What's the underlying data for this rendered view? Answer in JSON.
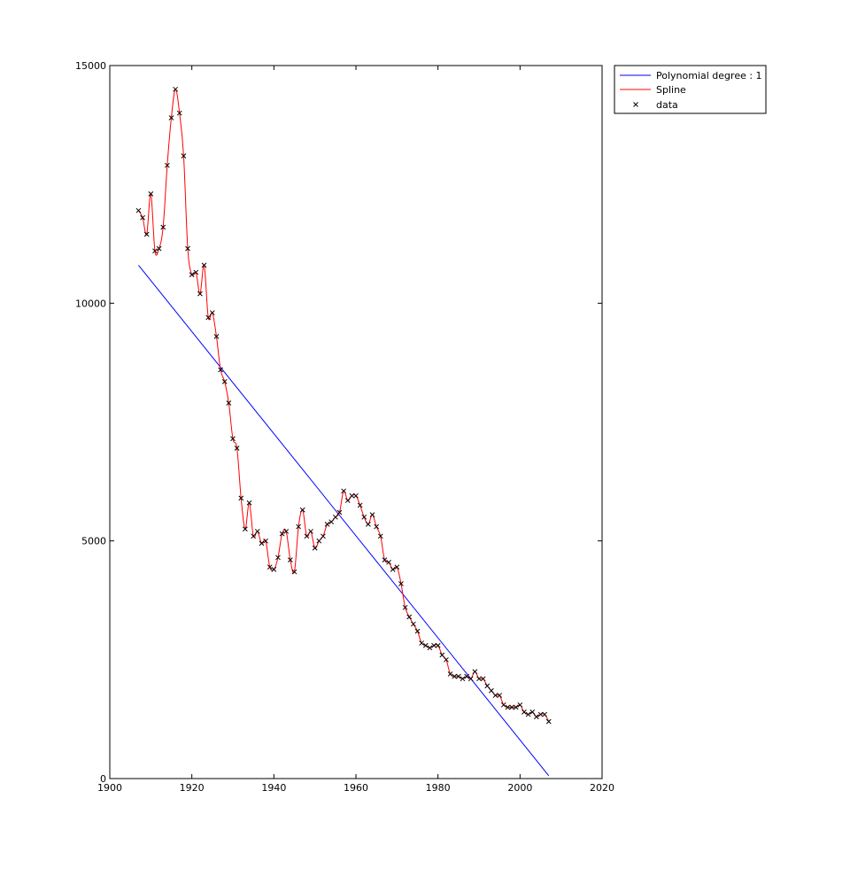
{
  "chart_data": {
    "type": "line",
    "xlim": [
      1900,
      2020
    ],
    "ylim": [
      0,
      15000
    ],
    "x_ticks": [
      1900,
      1920,
      1940,
      1960,
      1980,
      2000,
      2020
    ],
    "y_ticks": [
      0,
      5000,
      10000,
      15000
    ],
    "x_tick_labels": [
      "1900",
      "1920",
      "1940",
      "1960",
      "1980",
      "2000",
      "2020"
    ],
    "y_tick_labels": [
      "0",
      "5000",
      "10000",
      "15000"
    ],
    "grid": false,
    "legend_position": "outside-top-right",
    "legend": [
      "Polynomial degree : 1",
      "Spline",
      "data"
    ],
    "colors": {
      "fit": "#0000ff",
      "spline": "#ff0000",
      "data": "#000000"
    },
    "fit_line": {
      "x": [
        1907,
        2007
      ],
      "y": [
        10800,
        60
      ]
    },
    "data": {
      "x": [
        1907,
        1908,
        1909,
        1910,
        1911,
        1912,
        1913,
        1914,
        1915,
        1916,
        1917,
        1918,
        1919,
        1920,
        1921,
        1922,
        1923,
        1924,
        1925,
        1926,
        1927,
        1928,
        1929,
        1930,
        1931,
        1932,
        1933,
        1934,
        1935,
        1936,
        1937,
        1938,
        1939,
        1940,
        1941,
        1942,
        1943,
        1944,
        1945,
        1946,
        1947,
        1948,
        1949,
        1950,
        1951,
        1952,
        1953,
        1954,
        1955,
        1956,
        1957,
        1958,
        1959,
        1960,
        1961,
        1962,
        1963,
        1964,
        1965,
        1966,
        1967,
        1968,
        1969,
        1970,
        1971,
        1972,
        1973,
        1974,
        1975,
        1976,
        1977,
        1978,
        1979,
        1980,
        1981,
        1982,
        1983,
        1984,
        1985,
        1986,
        1987,
        1988,
        1989,
        1990,
        1991,
        1992,
        1993,
        1994,
        1995,
        1996,
        1997,
        1998,
        1999,
        2000,
        2001,
        2002,
        2003,
        2004,
        2005,
        2006,
        2007
      ],
      "y": [
        11950,
        11800,
        11450,
        12300,
        11100,
        11150,
        11600,
        12900,
        13900,
        14500,
        14000,
        13100,
        11150,
        10600,
        10650,
        10200,
        10800,
        9700,
        9800,
        9300,
        8600,
        8350,
        7900,
        7150,
        6950,
        5900,
        5250,
        5800,
        5100,
        5200,
        4950,
        5000,
        4450,
        4400,
        4650,
        5150,
        5200,
        4600,
        4350,
        5300,
        5650,
        5100,
        5200,
        4850,
        5000,
        5100,
        5350,
        5400,
        5500,
        5600,
        6050,
        5850,
        5950,
        5950,
        5750,
        5500,
        5350,
        5550,
        5300,
        5100,
        4600,
        4550,
        4400,
        4450,
        4100,
        3600,
        3400,
        3250,
        3100,
        2850,
        2800,
        2750,
        2800,
        2800,
        2600,
        2500,
        2200,
        2150,
        2150,
        2100,
        2150,
        2100,
        2250,
        2100,
        2100,
        1950,
        1850,
        1750,
        1750,
        1550,
        1500,
        1500,
        1500,
        1550,
        1400,
        1350,
        1400,
        1300,
        1350,
        1350,
        1200
      ]
    }
  }
}
